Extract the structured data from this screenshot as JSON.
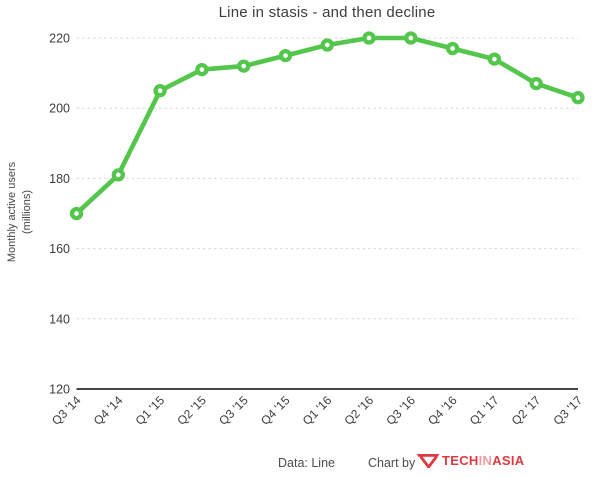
{
  "chart_data": {
    "type": "line",
    "title": "Line in stasis - and then decline",
    "ylabel": "Monthly active users (millions)",
    "ylabel_lines": [
      "Monthly active users",
      "(millions)"
    ],
    "xlabel": "",
    "categories": [
      "Q3 '14",
      "Q4 '14",
      "Q1 '15",
      "Q2 '15",
      "Q3 '15",
      "Q4 '15",
      "Q1 '16",
      "Q2 '16",
      "Q3 '16",
      "Q4 '16",
      "Q1 '17",
      "Q2 '17",
      "Q3 '17"
    ],
    "series": [
      {
        "name": "Line monthly active users (millions)",
        "values": [
          170,
          181,
          205,
          211,
          212,
          215,
          218,
          220,
          220,
          217,
          214,
          207,
          203
        ]
      }
    ],
    "ylim": [
      120,
      220
    ],
    "yticks": [
      120,
      140,
      160,
      180,
      200,
      220
    ],
    "grid": "horizontal-dashed",
    "legend": "none",
    "line_color": "#54c64c",
    "marker_style": "open-circle-white-fill",
    "gridline_color": "#d7d7d7",
    "axis_color": "#2b2b2b",
    "tick_label_color": "#3c3c3c"
  },
  "footer": {
    "data_source": "Data: Line",
    "chart_by_label": "Chart by",
    "logo_text": [
      "TECH",
      "IN",
      "ASIA"
    ],
    "logo_color": "#dc3a3e",
    "logo_muted_color": "#ec9fa0"
  }
}
